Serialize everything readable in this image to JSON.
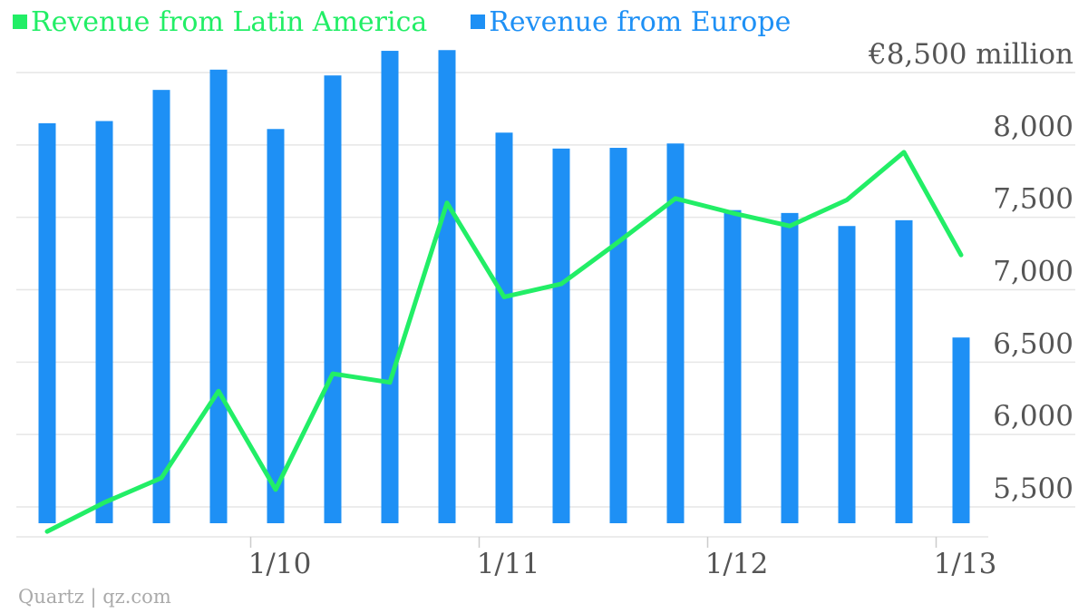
{
  "chart_data": {
    "type": "bar+line",
    "ylim": [
      5300,
      8700
    ],
    "y_unit_label": "€8,500 million",
    "y_ticks": [
      {
        "value": 5500,
        "label": "5,500"
      },
      {
        "value": 6000,
        "label": "6,000"
      },
      {
        "value": 6500,
        "label": "6,500"
      },
      {
        "value": 7000,
        "label": "7,000"
      },
      {
        "value": 7500,
        "label": "7,500"
      },
      {
        "value": 8000,
        "label": "8,000"
      },
      {
        "value": 8500,
        "label": "€8,500 million"
      }
    ],
    "x_ticks": [
      {
        "label": "1/10",
        "after_index": 3
      },
      {
        "label": "1/11",
        "after_index": 7
      },
      {
        "label": "1/12",
        "after_index": 11
      },
      {
        "label": "1/13",
        "after_index": 15
      }
    ],
    "grid": true,
    "legend_position": "top-left",
    "series": [
      {
        "name": "Revenue from Latin America",
        "type": "line",
        "color": "#22ee66",
        "values": [
          5330,
          5530,
          5700,
          6300,
          5620,
          6420,
          6360,
          7600,
          6950,
          7040,
          7330,
          7630,
          7530,
          7440,
          7620,
          7950,
          7240
        ]
      },
      {
        "name": "Revenue from Europe",
        "type": "bar",
        "color": "#1e90f5",
        "values": [
          8150,
          8165,
          8380,
          8520,
          8110,
          8480,
          8650,
          8655,
          8085,
          7975,
          7980,
          8010,
          7550,
          7530,
          7440,
          7480,
          6670
        ]
      }
    ]
  },
  "source": "Quartz | qz.com"
}
